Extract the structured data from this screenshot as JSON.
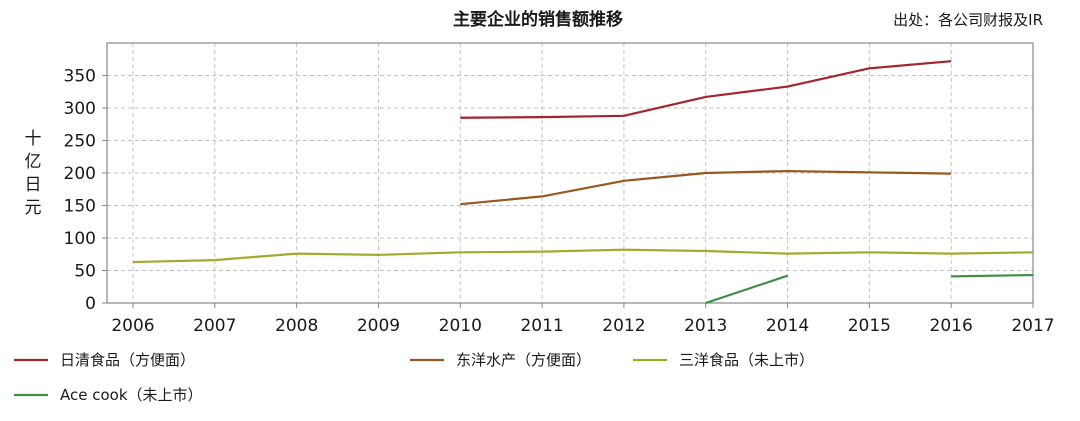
{
  "chart_data": {
    "type": "line",
    "title": "主要企业的销售额推移",
    "source": "出处：各公司财报及IR",
    "ylabel": "十亿日元",
    "xlabel": "",
    "x": [
      "2006",
      "2007",
      "2008",
      "2009",
      "2010",
      "2011",
      "2012",
      "2013",
      "2014",
      "2015",
      "2016",
      "2017"
    ],
    "ylim": [
      0,
      400
    ],
    "yticks": [
      0,
      50,
      100,
      150,
      200,
      250,
      300,
      350
    ],
    "grid": true,
    "legend_position": "bottom",
    "series": [
      {
        "name": "日清食品（方便面）",
        "color": "#a3262e",
        "values": [
          null,
          null,
          null,
          null,
          285,
          286,
          288,
          317,
          333,
          361,
          372,
          null
        ]
      },
      {
        "name": "东洋水产（方便面）",
        "color": "#98591e",
        "values": [
          null,
          null,
          null,
          null,
          152,
          164,
          188,
          200,
          203,
          201,
          199,
          null
        ]
      },
      {
        "name": "三洋食品（未上市）",
        "color": "#a5a930",
        "values": [
          63,
          66,
          76,
          74,
          78,
          79,
          82,
          80,
          76,
          78,
          76,
          78
        ]
      },
      {
        "name": "Ace cook（未上市）",
        "color": "#3c8f45",
        "values": [
          null,
          null,
          null,
          null,
          null,
          null,
          null,
          0,
          42,
          null,
          41,
          43
        ]
      }
    ]
  }
}
